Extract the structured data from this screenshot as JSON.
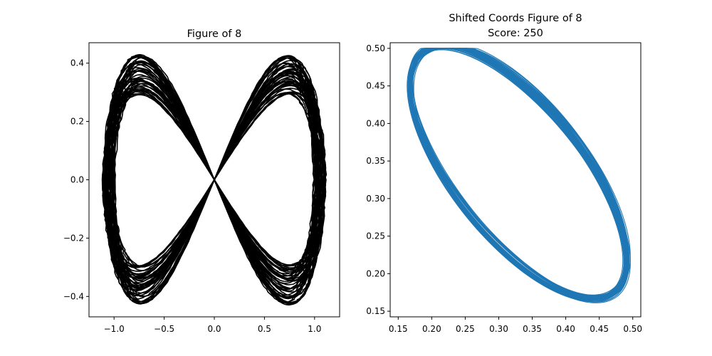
{
  "chart_data": [
    {
      "type": "line",
      "title": "Figure of 8",
      "color": "#000000",
      "xlabel": "",
      "ylabel": "",
      "xlim": [
        -1.25,
        1.25
      ],
      "ylim": [
        -0.47,
        0.47
      ],
      "xticks": [
        -1.0,
        -0.5,
        0.0,
        0.5,
        1.0
      ],
      "yticks": [
        -0.4,
        -0.2,
        0.0,
        0.2,
        0.4
      ],
      "xtick_labels": [
        "−1.0",
        "−0.5",
        "0.0",
        "0.5",
        "1.0"
      ],
      "ytick_labels": [
        "−0.4",
        "−0.2",
        "0.0",
        "0.2",
        "0.4"
      ],
      "curve": {
        "form": "lemniscate: x = A·sin(t), y = B·sin(2t)",
        "x_amplitude_range": [
          1.0,
          1.12
        ],
        "y_amplitude_range": [
          0.29,
          0.43
        ],
        "num_loops": 45
      },
      "grid": false
    },
    {
      "type": "line",
      "title": "Shifted Coords Figure of 8",
      "subtitle": "Score: 250",
      "color": "#1f77b4",
      "xlabel": "",
      "ylabel": "",
      "xlim": [
        0.138,
        0.512
      ],
      "ylim": [
        0.1425,
        0.5075
      ],
      "xticks": [
        0.15,
        0.2,
        0.25,
        0.3,
        0.35,
        0.4,
        0.45,
        0.5
      ],
      "yticks": [
        0.15,
        0.2,
        0.25,
        0.3,
        0.35,
        0.4,
        0.45,
        0.5
      ],
      "xtick_labels": [
        "0.15",
        "0.20",
        "0.25",
        "0.30",
        "0.35",
        "0.40",
        "0.45",
        "0.50"
      ],
      "ytick_labels": [
        "0.15",
        "0.20",
        "0.25",
        "0.30",
        "0.35",
        "0.40",
        "0.45",
        "0.50"
      ],
      "curve": {
        "form": "tilted ellipse through (0.25, 0.50) and (0.50, 0.25)",
        "center": [
          0.33,
          0.335
        ],
        "key_points": [
          [
            0.25,
            0.5
          ],
          [
            0.16,
            0.42
          ],
          [
            0.25,
            0.25
          ],
          [
            0.42,
            0.17
          ],
          [
            0.5,
            0.25
          ],
          [
            0.25,
            0.5
          ]
        ],
        "num_loops": 45
      },
      "grid": false
    }
  ]
}
